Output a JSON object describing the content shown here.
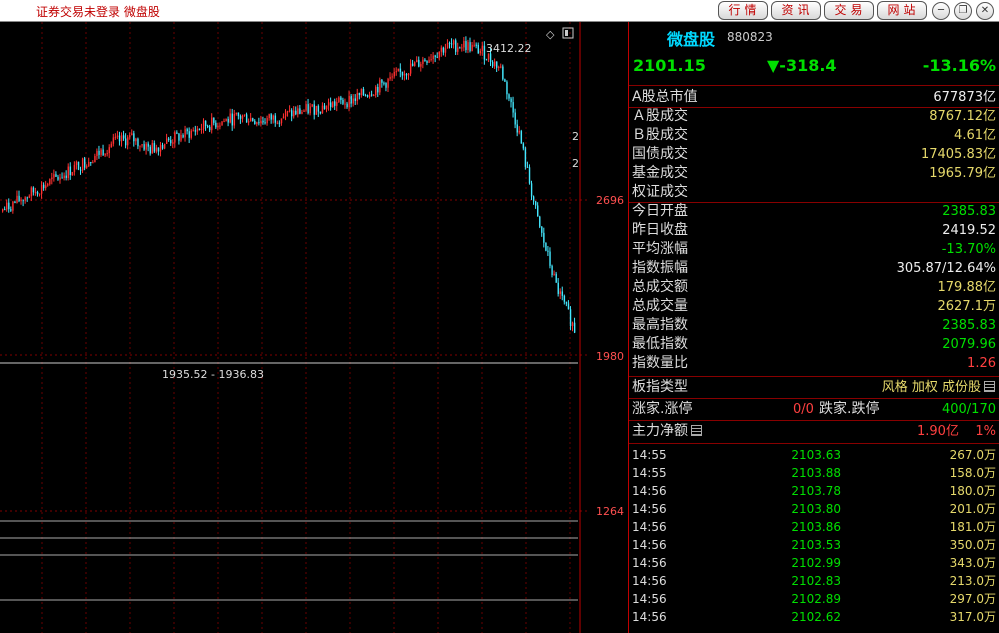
{
  "titlebar": {
    "title": "证券交易未登录  微盘股",
    "buttons": [
      "行情",
      "资讯",
      "交易",
      "网站"
    ]
  },
  "chart": {
    "high_label": "3412.22",
    "low_label": "1935.52 - 1936.83",
    "y_ticks": [
      "2696",
      "1980",
      "1264"
    ],
    "right_marks": [
      "2",
      "2"
    ]
  },
  "chart_data": {
    "type": "candlestick",
    "y_axis_ticks": [
      2696,
      1980,
      1264
    ],
    "annotated_high": 3412.22,
    "annotated_low_range": [
      1935.52,
      1936.83
    ],
    "approx_close_path": [
      2650,
      2700,
      2750,
      2800,
      2850,
      2900,
      2960,
      2980,
      2930,
      2970,
      3000,
      3040,
      3060,
      3080,
      3060,
      3080,
      3100,
      3120,
      3140,
      3160,
      3200,
      3250,
      3300,
      3350,
      3400,
      3412,
      3380,
      3300,
      3000,
      2600,
      2300,
      2101
    ]
  },
  "quote": {
    "name": "微盘股",
    "code": "880823",
    "price": "2101.15",
    "change": "▼-318.4",
    "pct": "-13.16%"
  },
  "stats": [
    {
      "label": "A股总市值",
      "value": "677873亿",
      "color": "white"
    },
    {
      "label": "Ａ股成交",
      "value": "8767.12亿",
      "color": "yellow"
    },
    {
      "label": "Ｂ股成交",
      "value": "4.61亿",
      "color": "yellow"
    },
    {
      "label": "国债成交",
      "value": "17405.83亿",
      "color": "yellow"
    },
    {
      "label": "基金成交",
      "value": "1965.79亿",
      "color": "yellow"
    },
    {
      "label": "权证成交",
      "value": "",
      "color": "yellow"
    },
    {
      "label": "今日开盘",
      "value": "2385.83",
      "color": "green"
    },
    {
      "label": "昨日收盘",
      "value": "2419.52",
      "color": "white"
    },
    {
      "label": "平均涨幅",
      "value": "-13.70%",
      "color": "green"
    },
    {
      "label": "指数振幅",
      "value": "305.87/12.64%",
      "color": "white"
    },
    {
      "label": "总成交额",
      "value": "179.88亿",
      "color": "yellow"
    },
    {
      "label": "总成交量",
      "value": "2627.1万",
      "color": "yellow"
    },
    {
      "label": "最高指数",
      "value": "2385.83",
      "color": "green"
    },
    {
      "label": "最低指数",
      "value": "2079.96",
      "color": "green"
    },
    {
      "label": "指数量比",
      "value": "1.26",
      "color": "red"
    }
  ],
  "board": {
    "label": "板指类型",
    "links": "风格 加权 成份股"
  },
  "updown": {
    "label1": "涨家.涨停",
    "value1": "0/0",
    "label2": "跌家.跌停",
    "value2": "400/170"
  },
  "mainflow": {
    "label": "主力净额",
    "value": "1.90亿",
    "pct": "1%"
  },
  "ticks": [
    {
      "time": "14:55",
      "price": "2103.63",
      "vol": "267.0万"
    },
    {
      "time": "14:55",
      "price": "2103.88",
      "vol": "158.0万"
    },
    {
      "time": "14:56",
      "price": "2103.78",
      "vol": "180.0万"
    },
    {
      "time": "14:56",
      "price": "2103.80",
      "vol": "201.0万"
    },
    {
      "time": "14:56",
      "price": "2103.86",
      "vol": "181.0万"
    },
    {
      "time": "14:56",
      "price": "2103.53",
      "vol": "350.0万"
    },
    {
      "time": "14:56",
      "price": "2102.99",
      "vol": "343.0万"
    },
    {
      "time": "14:56",
      "price": "2102.83",
      "vol": "213.0万"
    },
    {
      "time": "14:56",
      "price": "2102.89",
      "vol": "297.0万"
    },
    {
      "time": "14:56",
      "price": "2102.62",
      "vol": "317.0万"
    }
  ]
}
